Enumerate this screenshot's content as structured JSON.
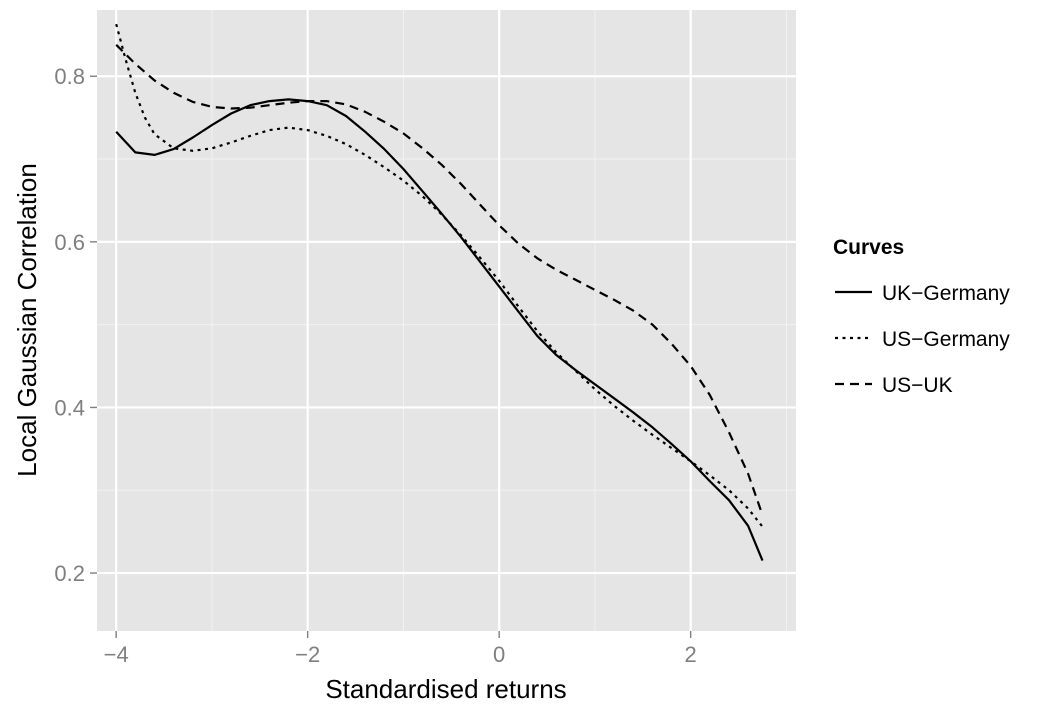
{
  "chart_data": {
    "type": "line",
    "title": "",
    "xlabel": "Standardised returns",
    "ylabel": "Local Gaussian Correlation",
    "xlim": [
      -4.2,
      3.1
    ],
    "ylim": [
      0.13,
      0.88
    ],
    "x_ticks": [
      -4,
      -2,
      0,
      2
    ],
    "x_tick_labels": [
      "−4",
      "−2",
      "0",
      "2"
    ],
    "y_ticks": [
      0.2,
      0.4,
      0.6,
      0.8
    ],
    "y_tick_labels": [
      "0.2",
      "0.4",
      "0.6",
      "0.8"
    ],
    "grid": true,
    "legend": {
      "title": "Curves",
      "position": "right"
    },
    "series": [
      {
        "name": "UK−Germany",
        "dash": "solid",
        "x": [
          -4.0,
          -3.8,
          -3.6,
          -3.4,
          -3.2,
          -3.0,
          -2.8,
          -2.6,
          -2.4,
          -2.2,
          -2.0,
          -1.8,
          -1.6,
          -1.4,
          -1.2,
          -1.0,
          -0.8,
          -0.6,
          -0.4,
          -0.2,
          0.0,
          0.2,
          0.4,
          0.6,
          0.8,
          1.0,
          1.2,
          1.4,
          1.6,
          1.8,
          2.0,
          2.2,
          2.4,
          2.6,
          2.75
        ],
        "y": [
          0.733,
          0.708,
          0.705,
          0.712,
          0.726,
          0.741,
          0.755,
          0.765,
          0.77,
          0.772,
          0.77,
          0.765,
          0.752,
          0.733,
          0.712,
          0.688,
          0.661,
          0.634,
          0.606,
          0.576,
          0.546,
          0.516,
          0.486,
          0.463,
          0.445,
          0.428,
          0.411,
          0.394,
          0.376,
          0.356,
          0.335,
          0.311,
          0.288,
          0.257,
          0.215
        ]
      },
      {
        "name": "US−Germany",
        "dash": "dotted",
        "x": [
          -4.0,
          -3.9,
          -3.8,
          -3.7,
          -3.6,
          -3.4,
          -3.2,
          -3.0,
          -2.8,
          -2.6,
          -2.4,
          -2.2,
          -2.0,
          -1.8,
          -1.6,
          -1.4,
          -1.2,
          -1.0,
          -0.8,
          -0.6,
          -0.4,
          -0.2,
          0.0,
          0.2,
          0.4,
          0.6,
          0.8,
          1.0,
          1.2,
          1.4,
          1.6,
          1.8,
          2.0,
          2.2,
          2.4,
          2.6,
          2.75
        ],
        "y": [
          0.863,
          0.82,
          0.78,
          0.75,
          0.73,
          0.713,
          0.71,
          0.713,
          0.72,
          0.728,
          0.735,
          0.738,
          0.735,
          0.728,
          0.718,
          0.705,
          0.69,
          0.674,
          0.655,
          0.633,
          0.608,
          0.581,
          0.553,
          0.522,
          0.492,
          0.466,
          0.444,
          0.422,
          0.402,
          0.384,
          0.367,
          0.351,
          0.335,
          0.318,
          0.3,
          0.278,
          0.256
        ]
      },
      {
        "name": "US−UK",
        "dash": "dashed",
        "x": [
          -4.0,
          -3.8,
          -3.6,
          -3.4,
          -3.2,
          -3.0,
          -2.8,
          -2.6,
          -2.4,
          -2.2,
          -2.0,
          -1.8,
          -1.6,
          -1.4,
          -1.2,
          -1.0,
          -0.8,
          -0.6,
          -0.4,
          -0.2,
          0.0,
          0.2,
          0.4,
          0.6,
          0.8,
          1.0,
          1.2,
          1.4,
          1.6,
          1.8,
          2.0,
          2.2,
          2.4,
          2.6,
          2.75
        ],
        "y": [
          0.838,
          0.815,
          0.795,
          0.78,
          0.769,
          0.763,
          0.761,
          0.762,
          0.765,
          0.768,
          0.77,
          0.77,
          0.766,
          0.757,
          0.745,
          0.731,
          0.713,
          0.693,
          0.67,
          0.645,
          0.62,
          0.598,
          0.58,
          0.566,
          0.554,
          0.542,
          0.53,
          0.517,
          0.5,
          0.477,
          0.45,
          0.415,
          0.37,
          0.32,
          0.27
        ]
      }
    ]
  }
}
